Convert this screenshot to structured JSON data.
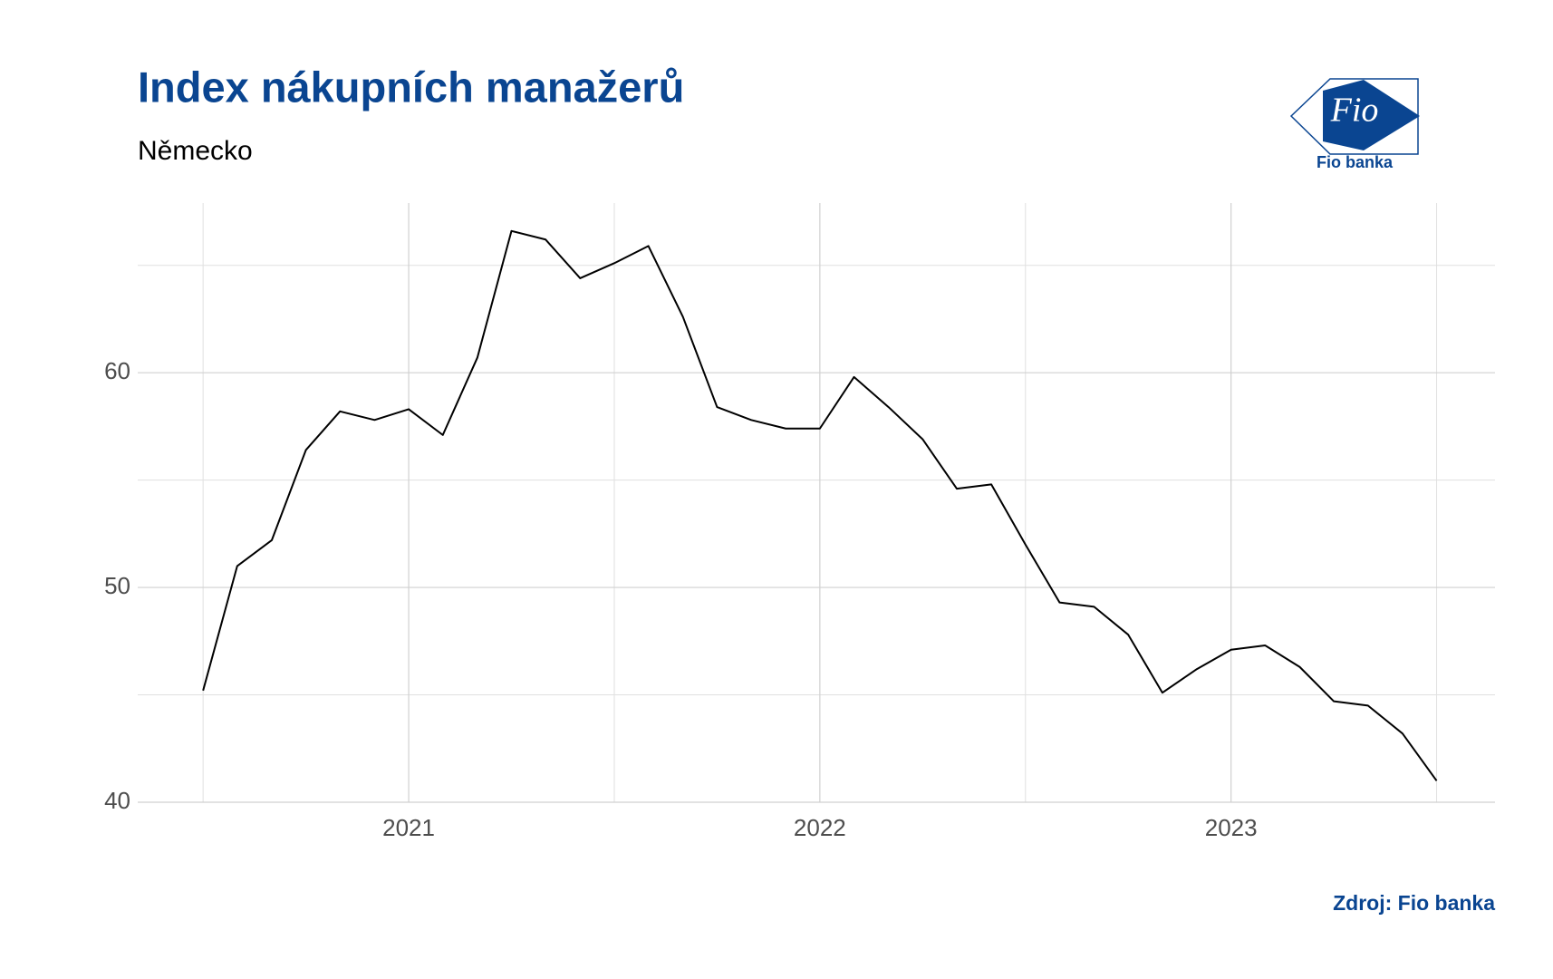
{
  "chart_data": {
    "type": "line",
    "title": "Index nákupních manažerů",
    "subtitle": "Německo",
    "source": "Zdroj: Fio banka",
    "logo": {
      "mark": "Fio",
      "name": "Fio banka"
    },
    "x": [
      2020.5,
      2020.583,
      2020.667,
      2020.75,
      2020.833,
      2020.917,
      2021.0,
      2021.083,
      2021.167,
      2021.25,
      2021.333,
      2021.417,
      2021.5,
      2021.583,
      2021.667,
      2021.75,
      2021.833,
      2021.917,
      2022.0,
      2022.083,
      2022.167,
      2022.25,
      2022.333,
      2022.417,
      2022.5,
      2022.583,
      2022.667,
      2022.75,
      2022.833,
      2022.917,
      2023.0,
      2023.083,
      2023.167,
      2023.25,
      2023.333,
      2023.417,
      2023.5
    ],
    "series": [
      {
        "name": "Německo",
        "color": "#000000",
        "values": [
          45.2,
          51.0,
          52.2,
          56.4,
          58.2,
          57.8,
          58.3,
          57.1,
          60.7,
          66.6,
          66.2,
          64.4,
          65.1,
          65.9,
          62.6,
          58.4,
          57.8,
          57.4,
          57.4,
          59.8,
          58.4,
          56.9,
          54.6,
          54.8,
          52.0,
          49.3,
          49.1,
          47.8,
          45.1,
          46.2,
          47.1,
          47.3,
          46.3,
          44.7,
          44.5,
          43.2,
          41.0
        ]
      }
    ],
    "xlim": [
      2020.341,
      2023.642
    ],
    "xticks": [
      2021,
      2022,
      2023
    ],
    "xminorticks": [
      2020.5,
      2021.5,
      2022.5,
      2023.5
    ],
    "ylim": [
      40,
      67.9
    ],
    "yticks": [
      40,
      50,
      60
    ],
    "yminorticks": [
      45,
      55,
      65
    ],
    "grid": true
  }
}
